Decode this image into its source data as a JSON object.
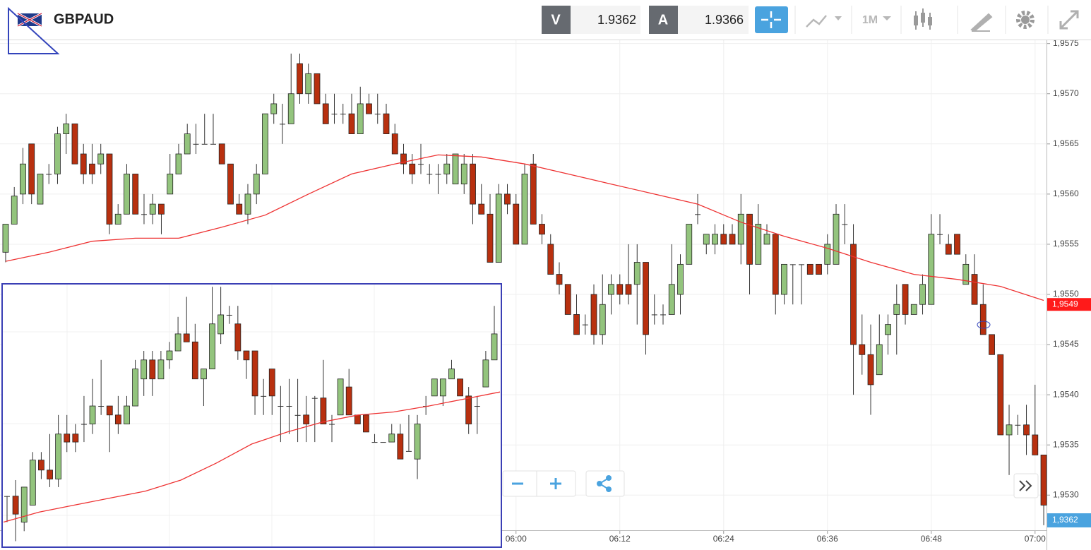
{
  "toolbar": {
    "symbol": "GBPAUD",
    "sell_label": "V",
    "sell_price": 1.9362,
    "buy_label": "A",
    "buy_price": 1.9366,
    "timeframe": "1M"
  },
  "chart_data": [
    {
      "type": "candlestick",
      "up_color": "#93c47d",
      "down_color": "#b8300f",
      "grid": true,
      "x": [
        301,
        302,
        303,
        304,
        305,
        306,
        307,
        308,
        309,
        310,
        311,
        312,
        313,
        314,
        315,
        316,
        317,
        318,
        319,
        320,
        321,
        322,
        323,
        324,
        325,
        326,
        327,
        328,
        329,
        330,
        331,
        332,
        333,
        334,
        335,
        336,
        337,
        338,
        339,
        340,
        341,
        342,
        343,
        344,
        345,
        346,
        347,
        348,
        349,
        350,
        351,
        352,
        353,
        354,
        355,
        356,
        357,
        358,
        359,
        360,
        361,
        362,
        363,
        364,
        365,
        366,
        367,
        368,
        369,
        370,
        371,
        372,
        373,
        374,
        375,
        376,
        377,
        378,
        379,
        380,
        381,
        382,
        383,
        384,
        385,
        386,
        387,
        388,
        389,
        390,
        391,
        392,
        393,
        394,
        395,
        396,
        397,
        398,
        399,
        400,
        401,
        402,
        403,
        404,
        405,
        406,
        407,
        408,
        409,
        410,
        411,
        412,
        413,
        414,
        415,
        416,
        417,
        418,
        419,
        420,
        421
      ],
      "open": [
        1.95542,
        1.9557,
        1.956,
        1.9565,
        1.9559,
        1.9562,
        1.9562,
        1.9566,
        1.9567,
        1.9564,
        1.9563,
        1.9563,
        1.9564,
        1.9557,
        1.9558,
        1.9562,
        1.9558,
        1.9558,
        1.9559,
        1.956,
        1.9562,
        1.9564,
        1.9565,
        1.9565,
        1.9565,
        1.9565,
        1.9563,
        1.9559,
        1.9558,
        1.956,
        1.9562,
        1.9568,
        1.9567,
        1.9567,
        1.9573,
        1.957,
        1.9572,
        1.9569,
        1.9568,
        1.9568,
        1.9568,
        1.9566,
        1.9569,
        1.9568,
        1.9568,
        1.9566,
        1.9564,
        1.9563,
        1.9563,
        1.9562,
        1.9562,
        1.9562,
        1.9561,
        1.9561,
        1.9563,
        1.9559,
        1.9558,
        1.95532,
        1.956,
        1.9559,
        1.9555,
        1.9563,
        1.9557,
        1.9555,
        1.9552,
        1.9551,
        1.9548,
        1.9547,
        1.955,
        1.9546,
        1.955,
        1.9551,
        1.9551,
        1.9551,
        1.95532,
        1.9548,
        1.9548,
        1.9548,
        1.955,
        1.9553,
        1.9558,
        1.9555,
        1.9555,
        1.9556,
        1.9556,
        1.9555,
        1.9558,
        1.9553,
        1.9555,
        1.9556,
        1.955,
        1.9553,
        1.9553,
        1.9553,
        1.9553,
        1.9553,
        1.9553,
        1.9557,
        1.9555,
        1.9545,
        1.9544,
        1.9542,
        1.9546,
        1.9548,
        1.9551,
        1.9548,
        1.9549,
        1.9549,
        1.9556,
        1.9555,
        1.9556,
        1.9551,
        1.9552,
        1.9549,
        1.9546,
        1.9544,
        1.9536,
        1.9537,
        1.9537,
        1.9536,
        1.9534
      ],
      "high": [
        1.9557,
        1.95607,
        1.95646,
        1.9565,
        1.9562,
        1.9563,
        1.95667,
        1.9568,
        1.9567,
        1.9565,
        1.9565,
        1.9565,
        1.9564,
        1.9559,
        1.9563,
        1.9562,
        1.956,
        1.956,
        1.9559,
        1.9564,
        1.9565,
        1.9567,
        1.9567,
        1.9568,
        1.9568,
        1.9565,
        1.9563,
        1.956,
        1.9561,
        1.9563,
        1.9568,
        1.957,
        1.9569,
        1.9574,
        1.9574,
        1.9573,
        1.9572,
        1.957,
        1.957,
        1.9569,
        1.957,
        1.95707,
        1.957,
        1.957,
        1.9569,
        1.9567,
        1.9565,
        1.9564,
        1.9565,
        1.9563,
        1.9563,
        1.9564,
        1.9564,
        1.9564,
        1.9564,
        1.9561,
        1.956,
        1.9561,
        1.9561,
        1.956,
        1.9563,
        1.9564,
        1.9558,
        1.9556,
        1.95532,
        1.9551,
        1.955,
        1.9548,
        1.9551,
        1.9552,
        1.9552,
        1.9552,
        1.9555,
        1.9555,
        1.95532,
        1.955,
        1.9549,
        1.9555,
        1.9554,
        1.9557,
        1.956,
        1.9556,
        1.9557,
        1.9557,
        1.9557,
        1.956,
        1.9558,
        1.9559,
        1.9557,
        1.9556,
        1.9553,
        1.9553,
        1.9553,
        1.9553,
        1.9553,
        1.9556,
        1.9559,
        1.9559,
        1.9557,
        1.9548,
        1.9547,
        1.9548,
        1.9548,
        1.9551,
        1.9551,
        1.9549,
        1.9552,
        1.9558,
        1.9558,
        1.9556,
        1.9556,
        1.9554,
        1.9554,
        1.9551,
        1.9546,
        1.9544,
        1.9539,
        1.9538,
        1.9539,
        1.9541,
        1.9534
      ],
      "low": [
        1.95532,
        1.9557,
        1.9559,
        1.9559,
        1.9559,
        1.9561,
        1.9561,
        1.9564,
        1.9563,
        1.9561,
        1.9561,
        1.9562,
        1.9556,
        1.9557,
        1.9558,
        1.9558,
        1.9557,
        1.9557,
        1.9556,
        1.956,
        1.9562,
        1.9564,
        1.9564,
        1.9565,
        1.9565,
        1.9563,
        1.9559,
        1.9558,
        1.9557,
        1.9559,
        1.9562,
        1.9567,
        1.9565,
        1.9567,
        1.9569,
        1.9569,
        1.9569,
        1.9567,
        1.9567,
        1.9567,
        1.9566,
        1.9566,
        1.9568,
        1.9567,
        1.9566,
        1.9564,
        1.9562,
        1.9561,
        1.9562,
        1.9561,
        1.956,
        1.9561,
        1.9561,
        1.956,
        1.9557,
        1.9558,
        1.95532,
        1.95532,
        1.9558,
        1.9555,
        1.9555,
        1.9557,
        1.9555,
        1.9552,
        1.955,
        1.9548,
        1.9546,
        1.9546,
        1.9545,
        1.9545,
        1.9548,
        1.9549,
        1.9549,
        1.9547,
        1.9544,
        1.9547,
        1.9547,
        1.9548,
        1.9548,
        1.9553,
        1.9557,
        1.9554,
        1.9554,
        1.9555,
        1.9555,
        1.9553,
        1.955,
        1.9553,
        1.9555,
        1.9548,
        1.9549,
        1.9549,
        1.9549,
        1.9552,
        1.9552,
        1.9552,
        1.9553,
        1.9555,
        1.954,
        1.9542,
        1.9538,
        1.9542,
        1.9544,
        1.9544,
        1.9547,
        1.9548,
        1.9548,
        1.9549,
        1.9555,
        1.9554,
        1.9554,
        1.9551,
        1.9549,
        1.9546,
        1.9544,
        1.9536,
        1.9532,
        1.9536,
        1.9534,
        1.9534,
        1.9527
      ],
      "close": [
        1.9557,
        1.95598,
        1.9563,
        1.956,
        1.9562,
        1.9562,
        1.9566,
        1.9567,
        1.9563,
        1.9562,
        1.9562,
        1.9564,
        1.9557,
        1.9558,
        1.9562,
        1.9558,
        1.9558,
        1.9559,
        1.9558,
        1.9562,
        1.9564,
        1.9566,
        1.9565,
        1.9565,
        1.9565,
        1.9563,
        1.9559,
        1.9558,
        1.956,
        1.9562,
        1.9568,
        1.9569,
        1.9567,
        1.957,
        1.957,
        1.9572,
        1.9569,
        1.9567,
        1.9568,
        1.9568,
        1.9566,
        1.9569,
        1.9568,
        1.9568,
        1.9566,
        1.9564,
        1.9563,
        1.9562,
        1.9563,
        1.9562,
        1.9562,
        1.9563,
        1.9564,
        1.9563,
        1.9559,
        1.9558,
        1.95532,
        1.956,
        1.9559,
        1.9555,
        1.9562,
        1.9557,
        1.9556,
        1.9552,
        1.9551,
        1.9548,
        1.9546,
        1.9547,
        1.9546,
        1.9549,
        1.9551,
        1.955,
        1.955,
        1.95532,
        1.9546,
        1.9548,
        1.9548,
        1.9551,
        1.9553,
        1.9557,
        1.9558,
        1.9556,
        1.9556,
        1.9555,
        1.9555,
        1.9558,
        1.9553,
        1.9557,
        1.9556,
        1.955,
        1.9553,
        1.9553,
        1.9553,
        1.9552,
        1.9552,
        1.9555,
        1.9558,
        1.9557,
        1.9545,
        1.9544,
        1.9541,
        1.9545,
        1.9547,
        1.9549,
        1.9548,
        1.9549,
        1.9551,
        1.9556,
        1.9556,
        1.9554,
        1.9554,
        1.9553,
        1.9549,
        1.9546,
        1.9544,
        1.9536,
        1.9537,
        1.9537,
        1.9536,
        1.9534,
        1.9529
      ],
      "ma": {
        "color": "#ee3333",
        "x": [
          301,
          306,
          311,
          316,
          321,
          326,
          331,
          336,
          341,
          346,
          351,
          356,
          361,
          366,
          371,
          376,
          381,
          386,
          391,
          396,
          401,
          406,
          411,
          416,
          421
        ],
        "values": [
          1.95533,
          1.95542,
          1.95553,
          1.95556,
          1.95556,
          1.95567,
          1.95579,
          1.956,
          1.9562,
          1.9563,
          1.95639,
          1.95637,
          1.9563,
          1.9562,
          1.9561,
          1.956,
          1.9559,
          1.95572,
          1.95558,
          1.95546,
          1.95532,
          1.9552,
          1.95515,
          1.95508,
          1.95494
        ]
      },
      "xlim": [
        300.35,
        421.16
      ],
      "xticks": [
        {
          "value": 360,
          "label": "06:00"
        },
        {
          "value": 372,
          "label": "06:12"
        },
        {
          "value": 384,
          "label": "06:24"
        },
        {
          "value": 396,
          "label": "06:36"
        },
        {
          "value": 408,
          "label": "06:48"
        },
        {
          "value": 420,
          "label": "07:00"
        }
      ],
      "ylim": [
        1.95265,
        1.95754
      ],
      "yticks": [
        {
          "value": 1.953,
          "label": "1,9530"
        },
        {
          "value": 1.9535,
          "label": "1,9535"
        },
        {
          "value": 1.954,
          "label": "1,9540"
        },
        {
          "value": 1.9545,
          "label": "1,9545"
        },
        {
          "value": 1.955,
          "label": "1,9550"
        },
        {
          "value": 1.9555,
          "label": "1,9555"
        },
        {
          "value": 1.956,
          "label": "1,9560"
        },
        {
          "value": 1.9565,
          "label": "1,9565"
        },
        {
          "value": 1.957,
          "label": "1,9570"
        },
        {
          "value": 1.9575,
          "label": "1,9575"
        }
      ],
      "price_tag": {
        "value": 1.9549,
        "label": "1,9549",
        "color": "#ff1a1a"
      },
      "bid_tag": {
        "label": "1,9362",
        "color": "#4aa3df"
      }
    },
    {
      "type": "candlestick",
      "up_color": "#93c47d",
      "down_color": "#b8300f",
      "open": [
        1.95299,
        1.95299,
        1.95273,
        1.9529,
        1.95335,
        1.95325,
        1.95316,
        1.95361,
        1.95361,
        1.95371,
        1.95371,
        1.95389,
        1.95389,
        1.9538,
        1.95371,
        1.95389,
        1.95416,
        1.95435,
        1.95416,
        1.95435,
        1.95444,
        1.95461,
        1.95453,
        1.95416,
        1.95426,
        1.95461,
        1.9548,
        1.95471,
        1.95444,
        1.95444,
        1.95399,
        1.95426,
        1.95389,
        1.95389,
        1.9538,
        1.9538,
        1.95397,
        1.95397,
        1.95371,
        1.9538,
        1.95408,
        1.9538,
        1.9538,
        1.95353,
        1.95353,
        1.95353,
        1.95361,
        1.95344,
        1.95336,
        1.95389,
        1.95399,
        1.95399,
        1.95416,
        1.95416,
        1.95399,
        1.95389,
        1.95408,
        1.95435
      ],
      "high": [
        1.95299,
        1.95315,
        1.95308,
        1.95343,
        1.95343,
        1.95361,
        1.9538,
        1.9538,
        1.95371,
        1.95399,
        1.95416,
        1.95435,
        1.95389,
        1.95399,
        1.95399,
        1.95435,
        1.95444,
        1.95444,
        1.95444,
        1.95453,
        1.95478,
        1.95498,
        1.95471,
        1.95426,
        1.95508,
        1.95508,
        1.95489,
        1.95489,
        1.95444,
        1.95444,
        1.95416,
        1.95426,
        1.95409,
        1.95416,
        1.95416,
        1.95399,
        1.95399,
        1.95435,
        1.9538,
        1.95416,
        1.95426,
        1.9538,
        1.9538,
        1.95361,
        1.95353,
        1.95371,
        1.95371,
        1.9538,
        1.9538,
        1.95399,
        1.95416,
        1.95416,
        1.95435,
        1.95416,
        1.95408,
        1.95399,
        1.95444,
        1.95489
      ],
      "low": [
        1.95273,
        1.95254,
        1.95264,
        1.9529,
        1.95316,
        1.95308,
        1.95308,
        1.95343,
        1.95343,
        1.95353,
        1.95361,
        1.9538,
        1.95343,
        1.95361,
        1.95371,
        1.95389,
        1.95399,
        1.95399,
        1.95416,
        1.95426,
        1.95444,
        1.95453,
        1.95416,
        1.95389,
        1.95426,
        1.95451,
        1.95471,
        1.95435,
        1.95416,
        1.9538,
        1.9538,
        1.9538,
        1.95353,
        1.95361,
        1.95353,
        1.95353,
        1.95353,
        1.95371,
        1.95353,
        1.9538,
        1.9538,
        1.95371,
        1.95363,
        1.95353,
        1.95353,
        1.95353,
        1.95336,
        1.95344,
        1.95316,
        1.9538,
        1.95399,
        1.95389,
        1.95416,
        1.95399,
        1.95361,
        1.95361,
        1.95408,
        1.95435
      ],
      "close": [
        1.95299,
        1.95281,
        1.95308,
        1.95335,
        1.95325,
        1.95316,
        1.95361,
        1.95353,
        1.95353,
        1.95371,
        1.95389,
        1.95389,
        1.9538,
        1.95371,
        1.95389,
        1.95426,
        1.95435,
        1.95416,
        1.95435,
        1.95444,
        1.95461,
        1.95453,
        1.95416,
        1.95426,
        1.95471,
        1.9548,
        1.9548,
        1.95444,
        1.95435,
        1.95399,
        1.95399,
        1.95399,
        1.95389,
        1.95389,
        1.9538,
        1.95371,
        1.95397,
        1.95371,
        1.95371,
        1.95416,
        1.9538,
        1.95371,
        1.95363,
        1.95353,
        1.95353,
        1.95361,
        1.95336,
        1.95344,
        1.95371,
        1.95389,
        1.95416,
        1.95416,
        1.95426,
        1.95399,
        1.95371,
        1.95389,
        1.95435,
        1.95461
      ],
      "ma": {
        "color": "#ee3333",
        "values": [
          1.95273,
          1.95283,
          1.9529,
          1.95297,
          1.95304,
          1.95315,
          1.95332,
          1.95351,
          1.95363,
          1.95373,
          1.9538,
          1.95383,
          1.95389,
          1.95396,
          1.95403
        ]
      },
      "ylim": [
        1.95248,
        1.95511
      ]
    }
  ]
}
